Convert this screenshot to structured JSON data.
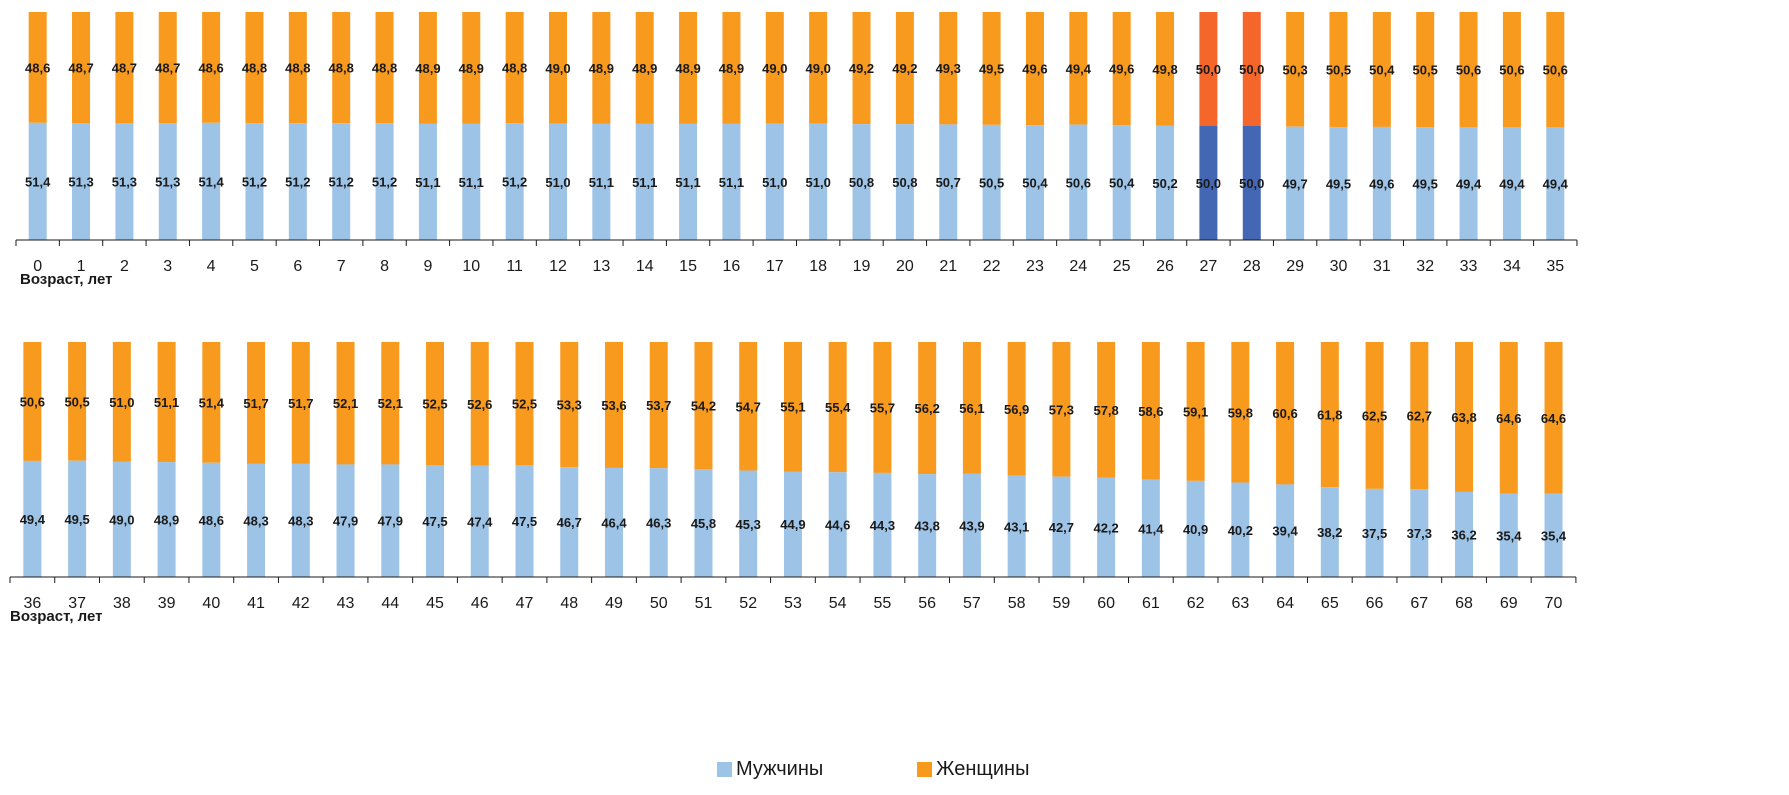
{
  "chart_data": [
    {
      "type": "bar",
      "stacked": true,
      "xlabel": "Возраст, лет",
      "categories": [
        "0",
        "1",
        "2",
        "3",
        "4",
        "5",
        "6",
        "7",
        "8",
        "9",
        "10",
        "11",
        "12",
        "13",
        "14",
        "15",
        "16",
        "17",
        "18",
        "19",
        "20",
        "21",
        "22",
        "23",
        "24",
        "25",
        "26",
        "27",
        "28",
        "29",
        "30",
        "31",
        "32",
        "33",
        "34",
        "35"
      ],
      "series": [
        {
          "name": "Мужчины",
          "values": [
            "51,4",
            "51,3",
            "51,3",
            "51,3",
            "51,4",
            "51,2",
            "51,2",
            "51,2",
            "51,2",
            "51,1",
            "51,1",
            "51,2",
            "51,0",
            "51,1",
            "51,1",
            "51,1",
            "51,1",
            "51,0",
            "51,0",
            "50,8",
            "50,8",
            "50,7",
            "50,5",
            "50,4",
            "50,6",
            "50,4",
            "50,2",
            "50,0",
            "50,0",
            "49,7",
            "49,5",
            "49,6",
            "49,5",
            "49,4",
            "49,4",
            "49,4"
          ]
        },
        {
          "name": "Женщины",
          "values": [
            "48,6",
            "48,7",
            "48,7",
            "48,7",
            "48,6",
            "48,8",
            "48,8",
            "48,8",
            "48,8",
            "48,9",
            "48,9",
            "48,8",
            "49,0",
            "48,9",
            "48,9",
            "48,9",
            "48,9",
            "49,0",
            "49,0",
            "49,2",
            "49,2",
            "49,3",
            "49,5",
            "49,6",
            "49,4",
            "49,6",
            "49,8",
            "50,0",
            "50,0",
            "50,3",
            "50,5",
            "50,4",
            "50,5",
            "50,6",
            "50,6",
            "50,6"
          ]
        }
      ],
      "highlight_categories": [
        "27",
        "28"
      ],
      "ylim": [
        0,
        100
      ]
    },
    {
      "type": "bar",
      "stacked": true,
      "xlabel": "Возраст, лет",
      "categories": [
        "36",
        "37",
        "38",
        "39",
        "40",
        "41",
        "42",
        "43",
        "44",
        "45",
        "46",
        "47",
        "48",
        "49",
        "50",
        "51",
        "52",
        "53",
        "54",
        "55",
        "56",
        "57",
        "58",
        "59",
        "60",
        "61",
        "62",
        "63",
        "64",
        "65",
        "66",
        "67",
        "68",
        "69",
        "70"
      ],
      "series": [
        {
          "name": "Мужчины",
          "values": [
            "49,4",
            "49,5",
            "49,0",
            "48,9",
            "48,6",
            "48,3",
            "48,3",
            "47,9",
            "47,9",
            "47,5",
            "47,4",
            "47,5",
            "46,7",
            "46,4",
            "46,3",
            "45,8",
            "45,3",
            "44,9",
            "44,6",
            "44,3",
            "43,8",
            "43,9",
            "43,1",
            "42,7",
            "42,2",
            "41,4",
            "40,9",
            "40,2",
            "39,4",
            "38,2",
            "37,5",
            "37,3",
            "36,2",
            "35,4",
            "35,4"
          ]
        },
        {
          "name": "Женщины",
          "values": [
            "50,6",
            "50,5",
            "51,0",
            "51,1",
            "51,4",
            "51,7",
            "51,7",
            "52,1",
            "52,1",
            "52,5",
            "52,6",
            "52,5",
            "53,3",
            "53,6",
            "53,7",
            "54,2",
            "54,7",
            "55,1",
            "55,4",
            "55,7",
            "56,2",
            "56,1",
            "56,9",
            "57,3",
            "57,8",
            "58,6",
            "59,1",
            "59,8",
            "60,6",
            "61,8",
            "62,5",
            "62,7",
            "63,8",
            "64,6",
            "64,6"
          ]
        }
      ],
      "ylim": [
        0,
        100
      ]
    }
  ],
  "legend": {
    "items": [
      {
        "label": "Мужчины",
        "color": "#9dc3e6"
      },
      {
        "label": "Женщины",
        "color": "#f79a1e"
      }
    ],
    "placement": "bottom-center"
  },
  "colors": {
    "male": "#9dc3e6",
    "female": "#f79a1e",
    "male_highlight": "#4467b4",
    "female_highlight": "#f4662a"
  }
}
